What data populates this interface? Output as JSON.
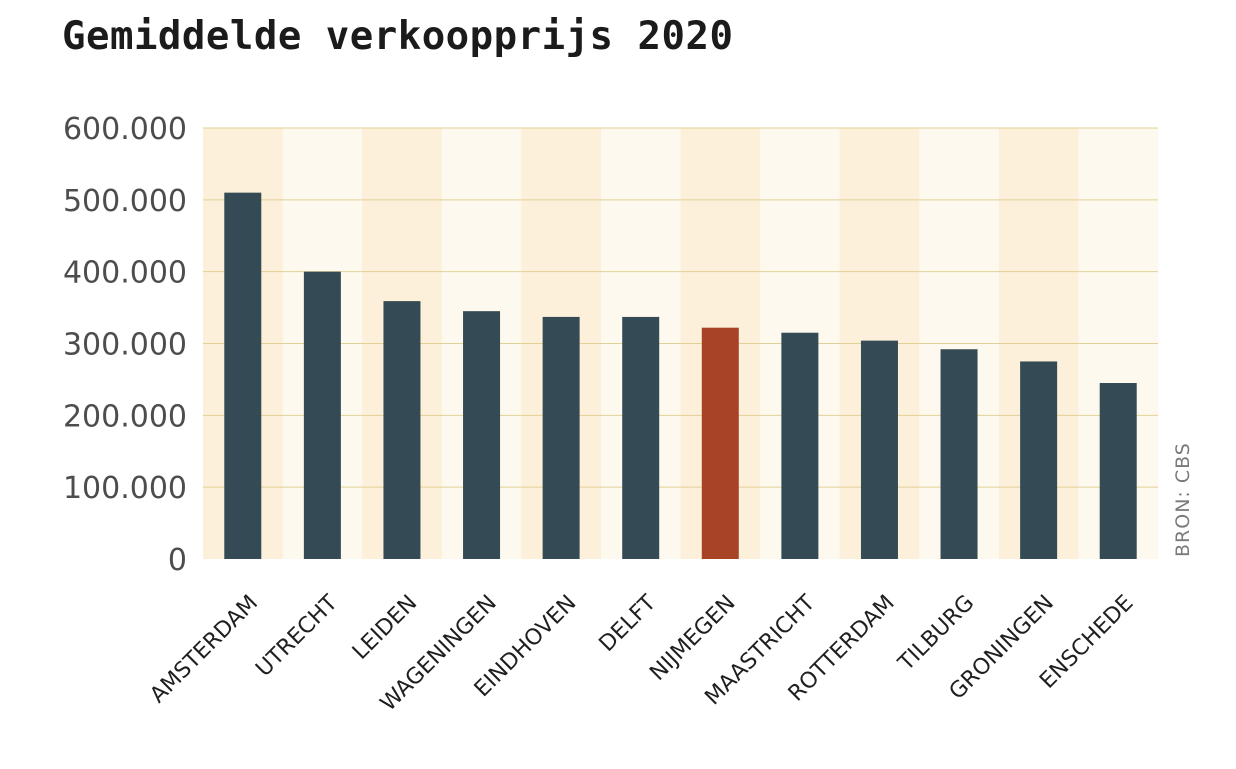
{
  "colors": {
    "bar": "#344a54",
    "highlight": "#a84326",
    "band_a": "#fcf0da",
    "band_b": "#fdf9ee",
    "grid": "#e2d196"
  },
  "chart_data": {
    "type": "bar",
    "title": "Gemiddelde verkoopprijs 2020",
    "source": "BRON: CBS",
    "xlabel": "",
    "ylabel": "",
    "categories": [
      "AMSTERDAM",
      "UTRECHT",
      "LEIDEN",
      "WAGENINGEN",
      "EINDHOVEN",
      "DELFT",
      "NIJMEGEN",
      "MAASTRICHT",
      "ROTTERDAM",
      "TILBURG",
      "GRONINGEN",
      "ENSCHEDE"
    ],
    "values": [
      510000,
      400000,
      359000,
      345000,
      337000,
      337000,
      322000,
      315000,
      304000,
      292000,
      275000,
      245000
    ],
    "highlight": "NIJMEGEN",
    "ylim": [
      0,
      600000
    ],
    "yticks": [
      0,
      100000,
      200000,
      300000,
      400000,
      500000,
      600000
    ],
    "ytick_labels": [
      "0",
      "100.000",
      "200.000",
      "300.000",
      "400.000",
      "500.000",
      "600.000"
    ],
    "grid": true,
    "legend": "none"
  }
}
